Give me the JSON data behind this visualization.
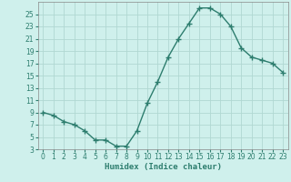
{
  "x": [
    0,
    1,
    2,
    3,
    4,
    5,
    6,
    7,
    8,
    9,
    10,
    11,
    12,
    13,
    14,
    15,
    16,
    17,
    18,
    19,
    20,
    21,
    22,
    23
  ],
  "y": [
    9,
    8.5,
    7.5,
    7,
    6,
    4.5,
    4.5,
    3.5,
    3.5,
    6,
    10.5,
    14,
    18,
    21,
    23.5,
    26,
    26,
    25,
    23,
    19.5,
    18,
    17.5,
    17,
    15.5
  ],
  "line_color": "#2d7d6e",
  "marker": "+",
  "marker_size": 4,
  "marker_lw": 1.0,
  "bg_color": "#cff0ec",
  "grid_color": "#b0d8d2",
  "xlabel": "Humidex (Indice chaleur)",
  "xlim": [
    -0.5,
    23.5
  ],
  "ylim": [
    3,
    27
  ],
  "yticks": [
    3,
    5,
    7,
    9,
    11,
    13,
    15,
    17,
    19,
    21,
    23,
    25
  ],
  "xticks": [
    0,
    1,
    2,
    3,
    4,
    5,
    6,
    7,
    8,
    9,
    10,
    11,
    12,
    13,
    14,
    15,
    16,
    17,
    18,
    19,
    20,
    21,
    22,
    23
  ],
  "tick_fontsize": 5.5,
  "label_fontsize": 6.5
}
